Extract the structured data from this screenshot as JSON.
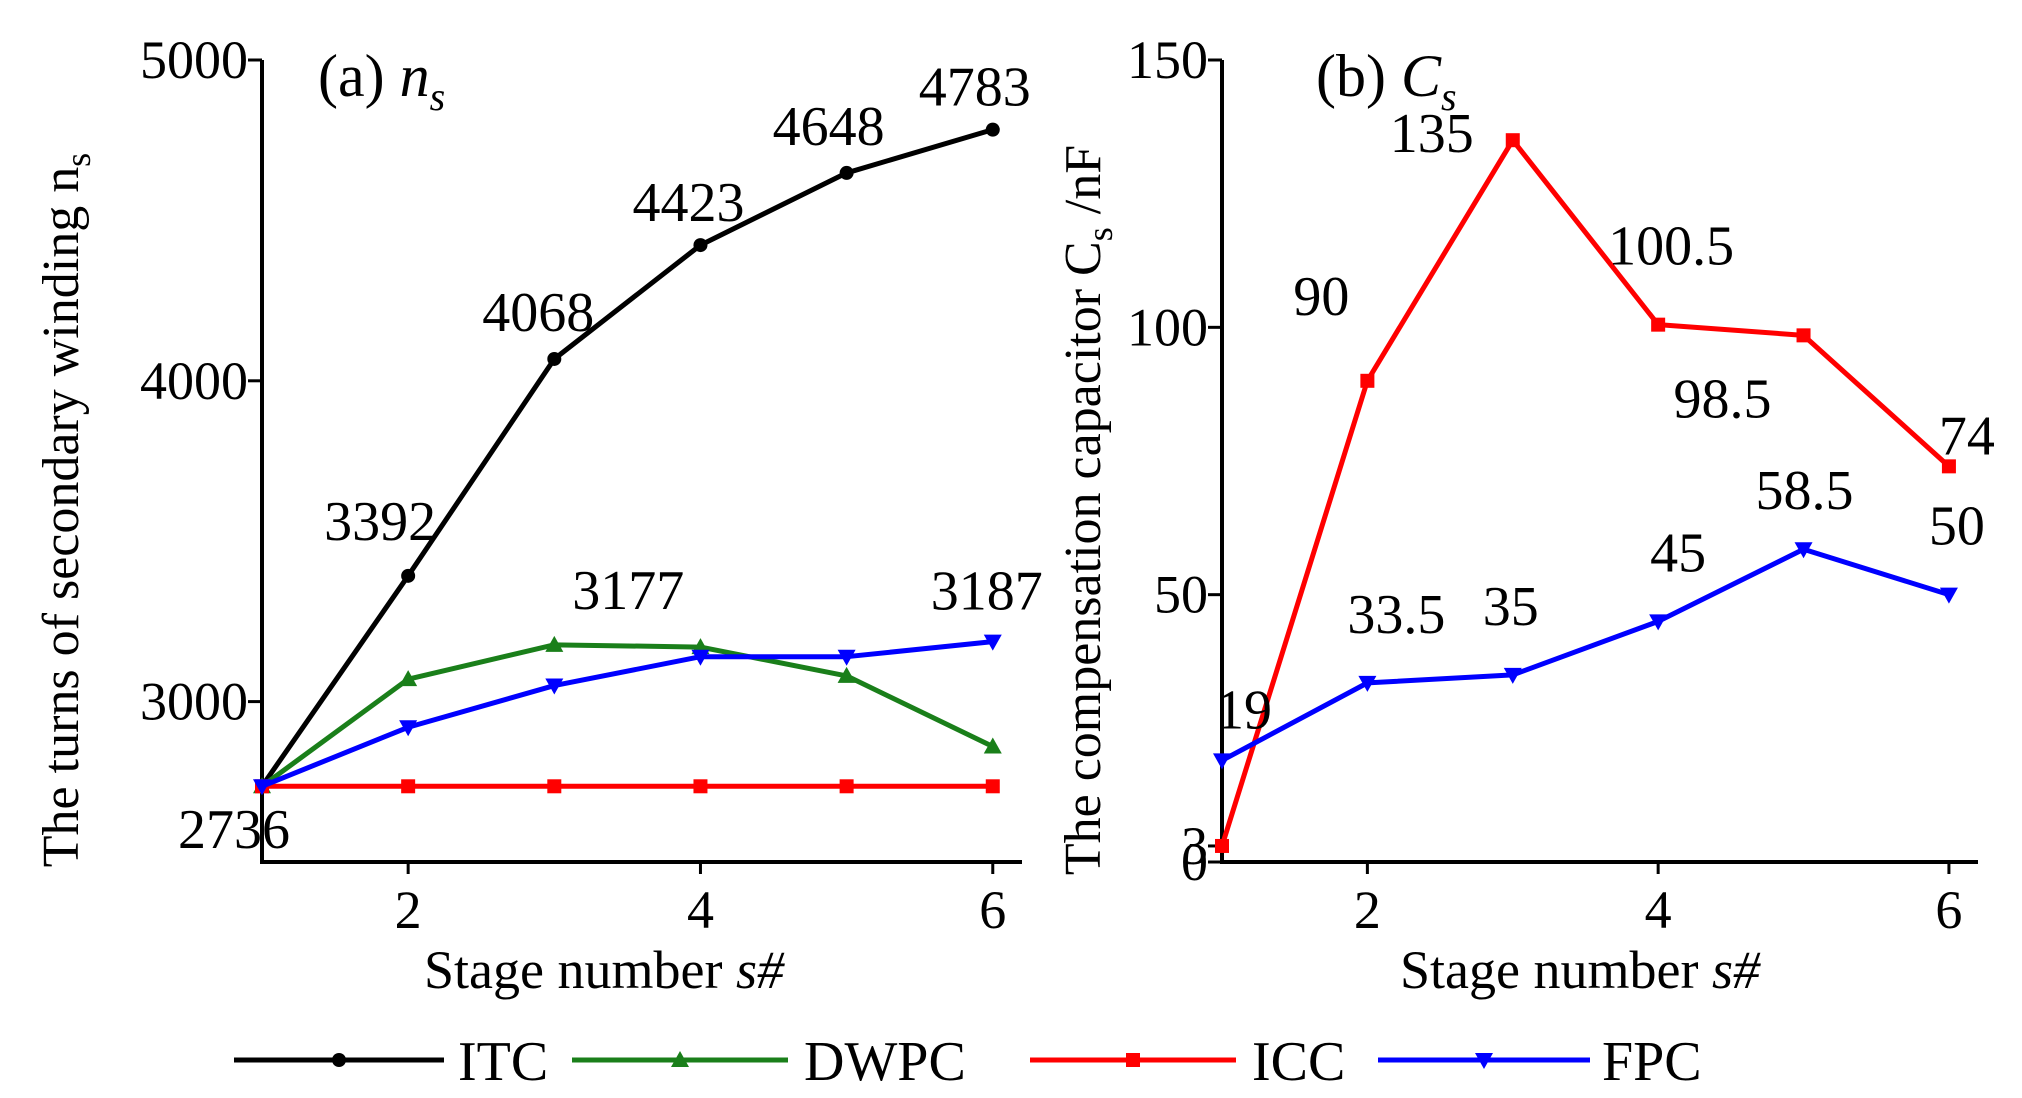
{
  "chart_data": [
    {
      "id": "a",
      "type": "line",
      "panel_label": "(a)",
      "title_symbol": "n",
      "title_sub": "s",
      "ylabel": "The turns of secondary winding n",
      "ylabel_sub": "s",
      "xlabel": "Stage number ",
      "xlabel_italic": "s#",
      "x": [
        1,
        2,
        3,
        4,
        5,
        6
      ],
      "xlim": [
        1,
        6.2
      ],
      "ylim": [
        2500,
        5000
      ],
      "xticks": [
        2,
        4,
        6
      ],
      "yticks": [
        3000,
        4000,
        5000
      ],
      "series": [
        {
          "name": "ITC",
          "color": "#000000",
          "marker": "circle",
          "values": [
            2736,
            3392,
            4068,
            4423,
            4648,
            4783
          ]
        },
        {
          "name": "DWPC",
          "color": "#1a7f1a",
          "marker": "triangle-up",
          "values": [
            2736,
            3070,
            3177,
            3170,
            3080,
            2860
          ]
        },
        {
          "name": "ICC",
          "color": "#ff0000",
          "marker": "square",
          "values": [
            2736,
            2736,
            2736,
            2736,
            2736,
            2736
          ]
        },
        {
          "name": "FPC",
          "color": "#0000ff",
          "marker": "triangle-down",
          "values": [
            2736,
            2920,
            3050,
            3140,
            3140,
            3187
          ]
        }
      ],
      "annotations": [
        {
          "text": "2736",
          "x": 1,
          "y": 2736
        },
        {
          "text": "3392",
          "x": 2,
          "y": 3392
        },
        {
          "text": "4068",
          "x": 3,
          "y": 4068
        },
        {
          "text": "4423",
          "x": 4,
          "y": 4423
        },
        {
          "text": "4648",
          "x": 5,
          "y": 4648
        },
        {
          "text": "4783",
          "x": 6,
          "y": 4783
        },
        {
          "text": "3177",
          "x": 3,
          "y": 3177
        },
        {
          "text": "3187",
          "x": 6,
          "y": 3187
        }
      ]
    },
    {
      "id": "b",
      "type": "line",
      "panel_label": "(b)",
      "title_symbol": "C",
      "title_sub": "s",
      "ylabel": "The compensation capacitor C",
      "ylabel_sub": "s",
      "ylabel_suffix": " /nF",
      "xlabel": "Stage number ",
      "xlabel_italic": "s#",
      "x": [
        1,
        2,
        3,
        4,
        5,
        6
      ],
      "xlim": [
        1,
        6.2
      ],
      "ylim": [
        0,
        150
      ],
      "xticks": [
        2,
        4,
        6
      ],
      "yticks": [
        0,
        3,
        50,
        100,
        150
      ],
      "series": [
        {
          "name": "ICC",
          "color": "#ff0000",
          "marker": "square",
          "values": [
            3,
            90,
            135,
            100.5,
            98.5,
            74
          ]
        },
        {
          "name": "FPC",
          "color": "#0000ff",
          "marker": "triangle-down",
          "values": [
            19,
            33.5,
            35,
            45,
            58.5,
            50
          ]
        }
      ],
      "annotations": [
        {
          "text": "19",
          "x": 1,
          "y": 19
        },
        {
          "text": "90",
          "x": 2,
          "y": 90
        },
        {
          "text": "135",
          "x": 3,
          "y": 135
        },
        {
          "text": "100.5",
          "x": 4,
          "y": 100.5
        },
        {
          "text": "98.5",
          "x": 5,
          "y": 98.5
        },
        {
          "text": "74",
          "x": 6,
          "y": 74
        },
        {
          "text": "33.5",
          "x": 2,
          "y": 33.5
        },
        {
          "text": "35",
          "x": 3,
          "y": 35
        },
        {
          "text": "45",
          "x": 4,
          "y": 45
        },
        {
          "text": "58.5",
          "x": 5,
          "y": 58.5
        },
        {
          "text": "50",
          "x": 6,
          "y": 50
        }
      ]
    }
  ],
  "legend": [
    {
      "name": "ITC",
      "color": "#000000",
      "marker": "circle"
    },
    {
      "name": "DWPC",
      "color": "#1a7f1a",
      "marker": "triangle-up"
    },
    {
      "name": "ICC",
      "color": "#ff0000",
      "marker": "square"
    },
    {
      "name": "FPC",
      "color": "#0000ff",
      "marker": "triangle-down"
    }
  ]
}
